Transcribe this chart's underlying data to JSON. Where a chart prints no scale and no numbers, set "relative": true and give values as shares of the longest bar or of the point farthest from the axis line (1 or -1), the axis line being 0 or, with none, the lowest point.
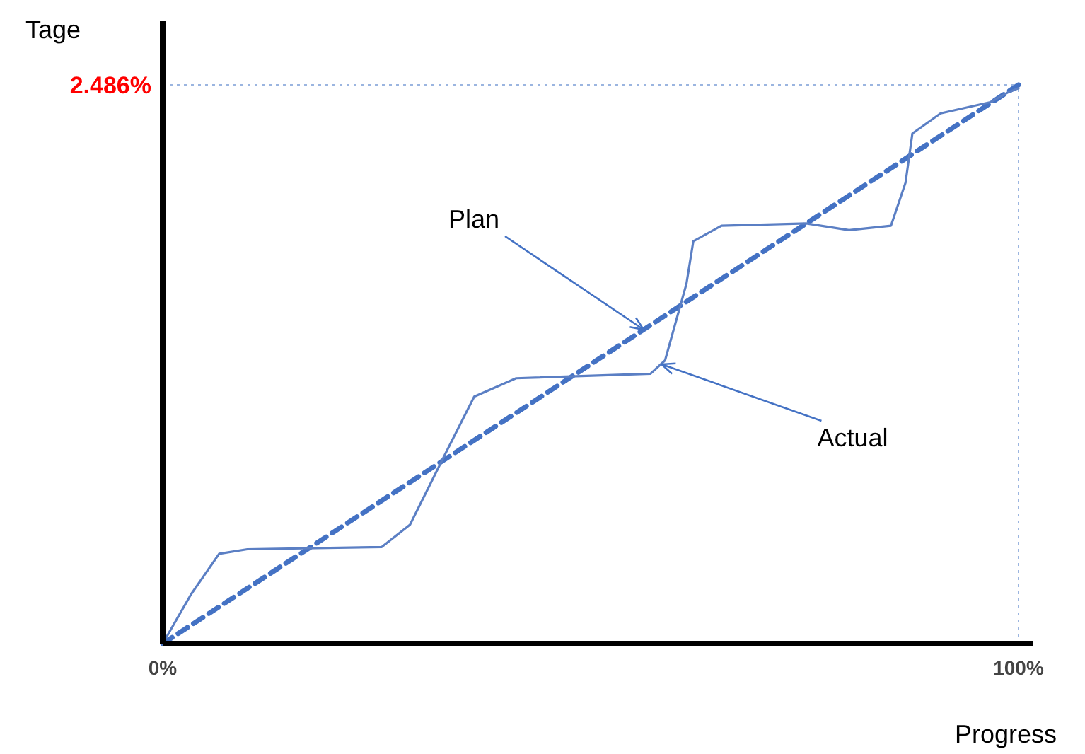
{
  "chart_data": {
    "type": "line",
    "xlabel": "Progress",
    "ylabel": "Tage",
    "relative": true,
    "xlim": [
      0,
      100
    ],
    "xticks": [
      {
        "value": 0,
        "label": "0%"
      },
      {
        "value": 100,
        "label": "100%"
      }
    ],
    "series": [
      {
        "color": "#4472c4",
        "line_style": "dashed",
        "x": [
          0,
          100
        ],
        "values": [
          0,
          1
        ]
      },
      {
        "color": "#5b7fc4",
        "line_style": "solid",
        "x": [
          0,
          3.3,
          6.6,
          9.9,
          25.6,
          28.9,
          33.1,
          36.4,
          41.3,
          57.0,
          58.7,
          61.2,
          62.0,
          65.3,
          75.2,
          80.2,
          85.1,
          86.8,
          87.6,
          90.9,
          96.7,
          98.7,
          100
        ],
        "values": [
          0,
          0.088,
          0.161,
          0.169,
          0.173,
          0.213,
          0.342,
          0.442,
          0.475,
          0.483,
          0.507,
          0.644,
          0.72,
          0.748,
          0.752,
          0.74,
          0.748,
          0.825,
          0.913,
          0.949,
          0.969,
          0.986,
          0.994
        ]
      }
    ],
    "ref_lines": [
      {
        "axis": "y",
        "value": 1,
        "color": "#9bb5e0",
        "line_style": "dotted"
      },
      {
        "axis": "x",
        "value": 100,
        "color": "#9bb5e0",
        "line_style": "dotted"
      }
    ],
    "annotations": [
      "2.486%",
      {
        "text": "Plan",
        "x": 56.2,
        "y": 0.562
      },
      {
        "text": "Actual",
        "x": 58.3,
        "y": 0.5
      }
    ]
  }
}
